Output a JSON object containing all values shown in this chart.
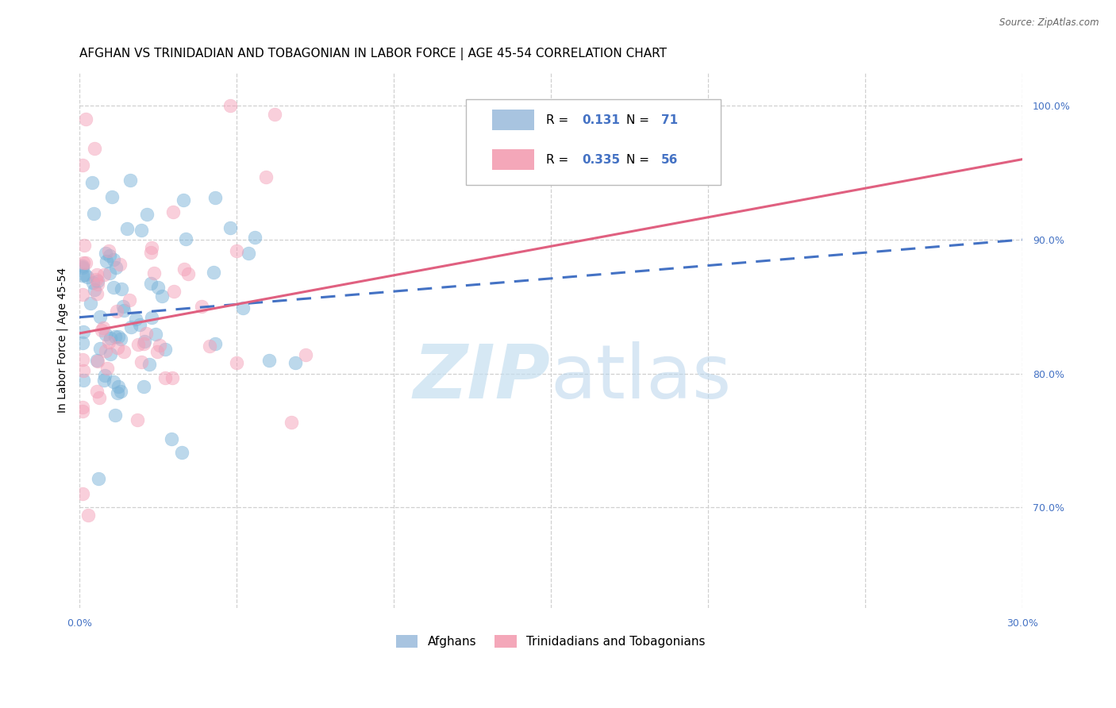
{
  "title": "AFGHAN VS TRINIDADIAN AND TOBAGONIAN IN LABOR FORCE | AGE 45-54 CORRELATION CHART",
  "source": "Source: ZipAtlas.com",
  "ylabel": "In Labor Force | Age 45-54",
  "xlim": [
    0.0,
    0.3
  ],
  "ylim": [
    0.625,
    1.025
  ],
  "xticks": [
    0.0,
    0.05,
    0.1,
    0.15,
    0.2,
    0.25,
    0.3
  ],
  "xtick_labels": [
    "0.0%",
    "",
    "",
    "",
    "",
    "",
    "30.0%"
  ],
  "ytick_labels_right": [
    "70.0%",
    "80.0%",
    "90.0%",
    "100.0%"
  ],
  "yticks_right": [
    0.7,
    0.8,
    0.9,
    1.0
  ],
  "blue_color": "#7ab3d9",
  "pink_color": "#f4a0b8",
  "blue_line_color": "#4472c4",
  "pink_line_color": "#e06080",
  "title_fontsize": 11,
  "axis_label_fontsize": 10,
  "tick_fontsize": 9,
  "af_intercept": 0.845,
  "af_slope": 0.18,
  "tnt_intercept": 0.825,
  "tnt_slope": 0.4
}
